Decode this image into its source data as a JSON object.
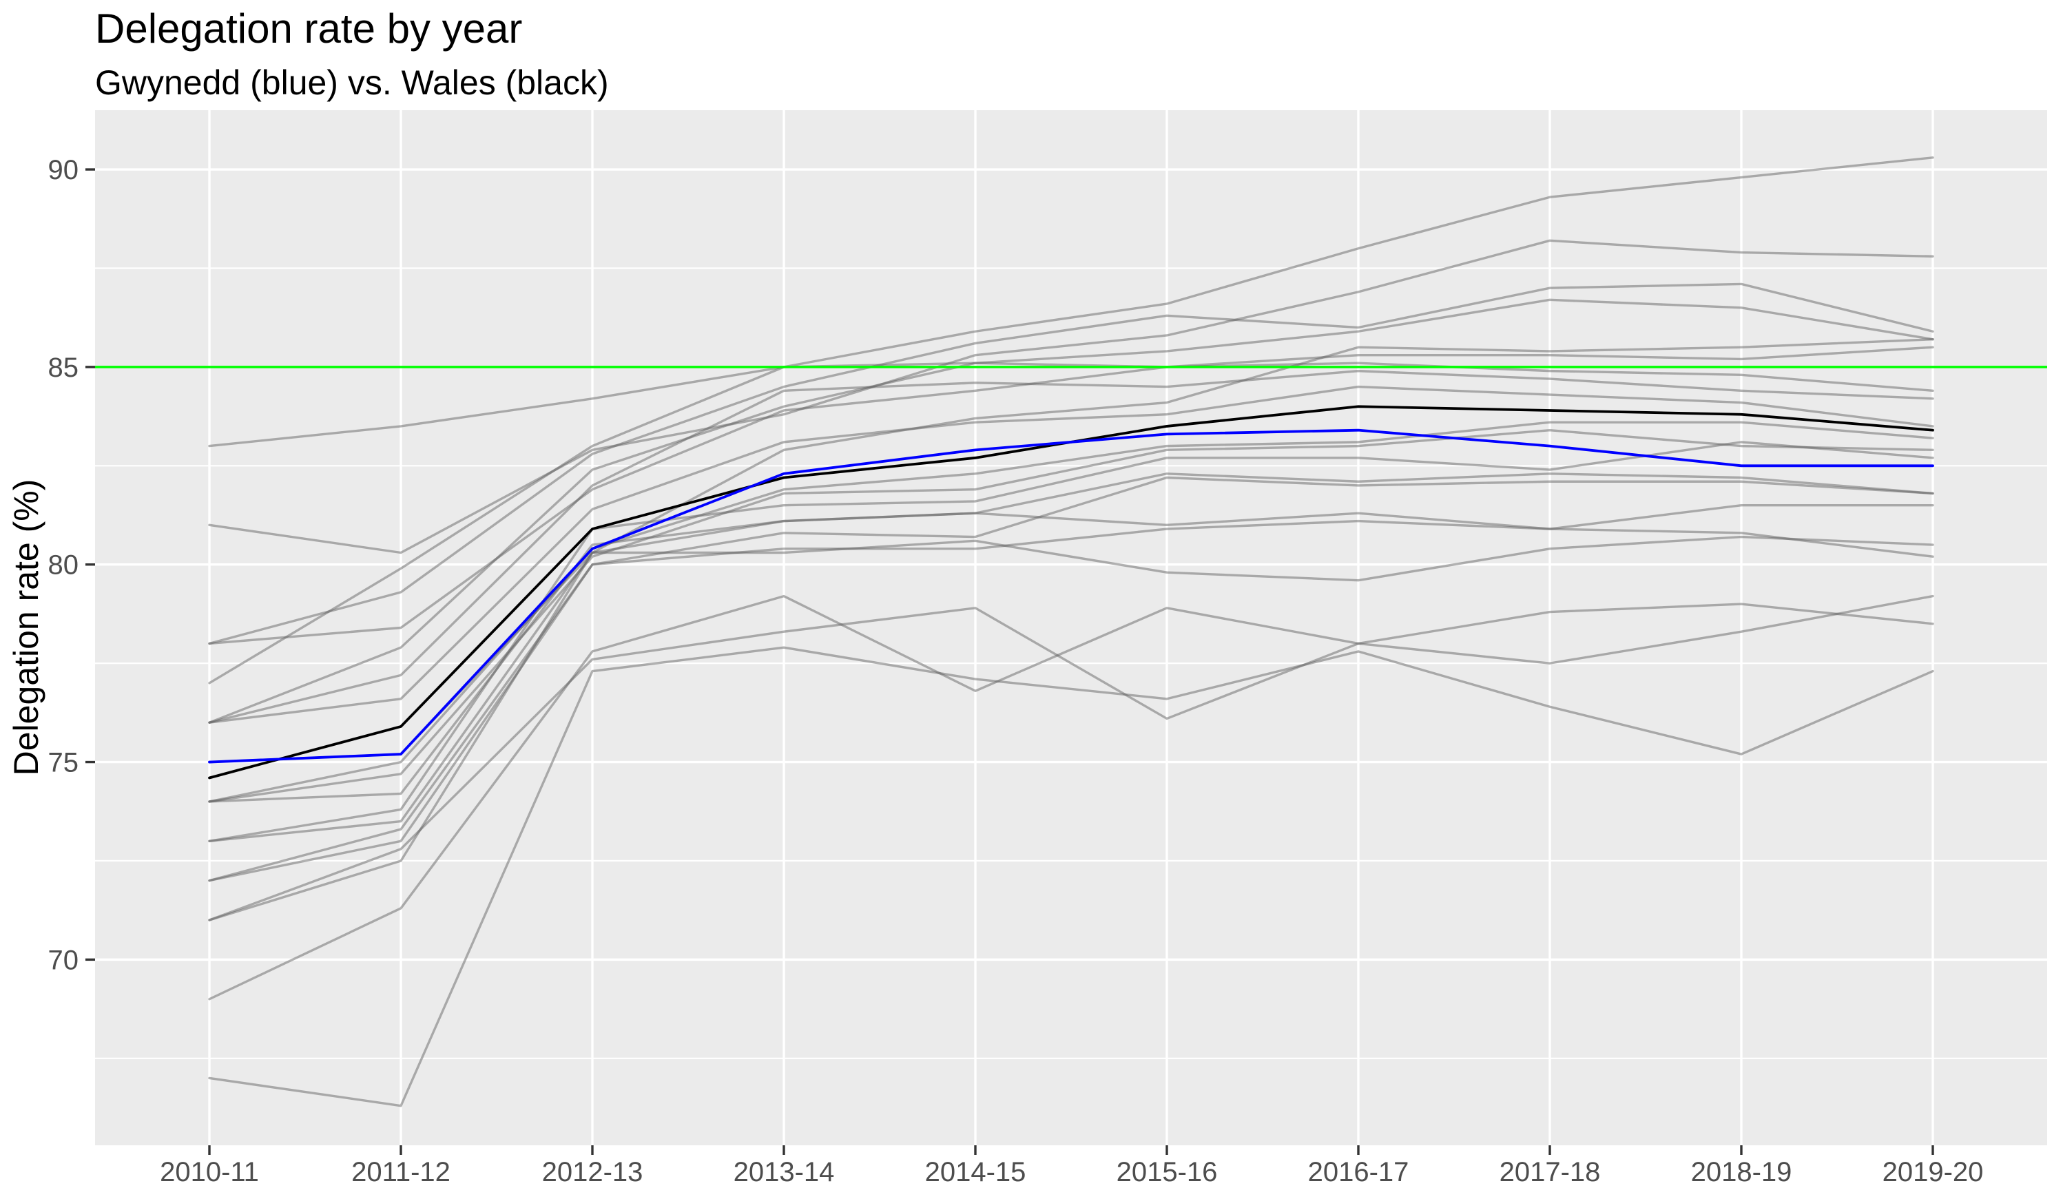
{
  "chart_data": {
    "type": "line",
    "title": "Delegation rate by year",
    "subtitle": "Gwynedd (blue) vs. Wales (black)",
    "xlabel": "",
    "ylabel": "Delegation rate (%)",
    "x_categories": [
      "2010-11",
      "2011-12",
      "2012-13",
      "2013-14",
      "2014-15",
      "2015-16",
      "2016-17",
      "2017-18",
      "2018-19",
      "2019-20"
    ],
    "y_tick_labels": [
      "70",
      "75",
      "80",
      "85",
      "90"
    ],
    "y_major_ticks": [
      70,
      75,
      80,
      85,
      90
    ],
    "y_minor_gridlines": [
      67.5,
      72.5,
      77.5,
      82.5,
      87.5
    ],
    "ylim": [
      65.3,
      91.5
    ],
    "legend_position": "none",
    "grid": "horizontal major+minor and vertical major, white on gray panel",
    "reference_line": {
      "value": 85,
      "color": "#00FF00"
    },
    "series": [
      {
        "name": "Gwynedd",
        "role": "highlight",
        "color": "#0000FF",
        "values": [
          75.0,
          75.2,
          80.4,
          82.3,
          82.9,
          83.3,
          83.4,
          83.0,
          82.5,
          82.5
        ]
      },
      {
        "name": "Wales",
        "role": "highlight",
        "color": "#000000",
        "values": [
          74.6,
          75.9,
          80.9,
          82.2,
          82.7,
          83.5,
          84.0,
          83.9,
          83.8,
          83.4
        ]
      }
    ],
    "background_series": [
      {
        "values": [
          83.0,
          83.5,
          84.2,
          85.0,
          85.9,
          86.6,
          88.0,
          89.3,
          89.8,
          90.3
        ]
      },
      {
        "values": [
          81.0,
          80.3,
          82.9,
          83.8,
          85.3,
          85.8,
          86.9,
          88.2,
          87.9,
          87.8
        ]
      },
      {
        "values": [
          78.0,
          79.3,
          82.8,
          84.5,
          85.6,
          86.3,
          86.0,
          87.0,
          87.1,
          85.9
        ]
      },
      {
        "values": [
          76.0,
          77.9,
          82.4,
          84.0,
          85.1,
          85.4,
          85.9,
          86.7,
          86.5,
          85.7
        ]
      },
      {
        "values": [
          73.0,
          73.5,
          80.3,
          82.9,
          83.7,
          84.1,
          85.5,
          85.4,
          85.5,
          85.7
        ]
      },
      {
        "values": [
          78.0,
          78.4,
          81.9,
          83.9,
          84.4,
          85.0,
          85.3,
          85.3,
          85.2,
          85.5
        ]
      },
      {
        "values": [
          77.0,
          79.9,
          83.0,
          85.0,
          85.1,
          85.0,
          85.1,
          84.9,
          84.8,
          84.4
        ]
      },
      {
        "values": [
          76.0,
          77.2,
          82.0,
          84.4,
          84.6,
          84.5,
          84.9,
          84.7,
          84.4,
          84.2
        ]
      },
      {
        "values": [
          76.0,
          76.6,
          81.4,
          83.1,
          83.6,
          83.8,
          84.5,
          84.3,
          84.1,
          83.5
        ]
      },
      {
        "values": [
          74.0,
          75.0,
          80.4,
          81.9,
          82.3,
          83.0,
          83.1,
          83.6,
          83.6,
          83.2
        ]
      },
      {
        "values": [
          74.0,
          74.7,
          80.2,
          81.8,
          81.9,
          82.9,
          83.0,
          83.4,
          83.0,
          82.9
        ]
      },
      {
        "values": [
          73.0,
          73.8,
          80.9,
          81.5,
          81.6,
          82.7,
          82.7,
          82.4,
          83.1,
          82.7
        ]
      },
      {
        "values": [
          75.0,
          75.2,
          80.3,
          81.1,
          81.3,
          82.3,
          82.1,
          82.3,
          82.2,
          81.8
        ]
      },
      {
        "values": [
          72.0,
          73.3,
          80.0,
          80.8,
          80.7,
          82.2,
          82.0,
          82.1,
          82.1,
          81.8
        ]
      },
      {
        "values": [
          74.0,
          74.2,
          80.5,
          81.1,
          81.3,
          81.0,
          81.3,
          80.9,
          81.5,
          81.5
        ]
      },
      {
        "values": [
          71.0,
          72.5,
          80.3,
          80.3,
          80.6,
          79.8,
          79.6,
          80.4,
          80.7,
          80.5
        ]
      },
      {
        "values": [
          69.0,
          71.3,
          77.8,
          79.2,
          76.8,
          78.9,
          78.0,
          78.8,
          79.0,
          78.5
        ]
      },
      {
        "values": [
          67.0,
          66.3,
          77.3,
          77.9,
          77.1,
          76.6,
          77.8,
          76.4,
          75.2,
          77.3
        ]
      },
      {
        "values": [
          72.0,
          73.0,
          80.0,
          80.4,
          80.4,
          80.9,
          81.1,
          80.9,
          80.8,
          80.2
        ]
      },
      {
        "values": [
          71.0,
          72.8,
          77.6,
          78.3,
          78.9,
          76.1,
          78.0,
          77.5,
          78.3,
          79.2
        ]
      }
    ],
    "colors": {
      "panel_background": "#EBEBEB",
      "gridline": "#FFFFFF",
      "background_series": "#A8A8A8",
      "gwynedd": "#0000FF",
      "wales": "#000000",
      "reference": "#00FF00",
      "axis_text": "#4D4D4D",
      "tick_mark": "#333333"
    }
  }
}
